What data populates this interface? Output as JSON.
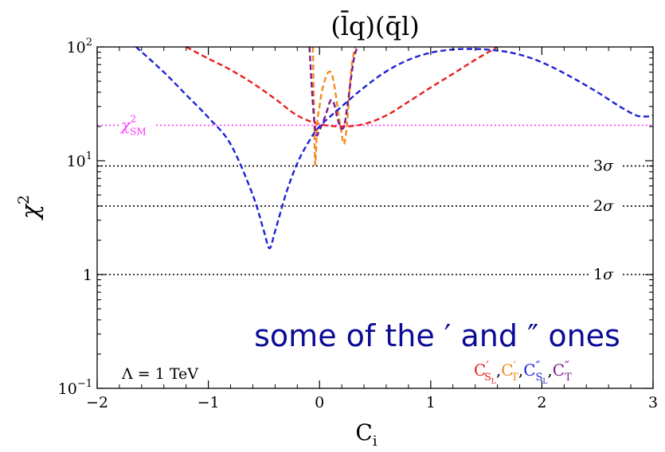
{
  "chart_data": {
    "type": "line",
    "title": "(l̄q)(q̄l)",
    "xlabel": "C",
    "xlabel_sub": "i",
    "ylabel": "χ",
    "ylabel_sup": "2",
    "xlim": [
      -2,
      3
    ],
    "ylim": [
      0.1,
      100
    ],
    "yscale": "log",
    "x_ticks": [
      -2,
      -1,
      0,
      1,
      2,
      3
    ],
    "x_tick_labels": [
      "−2",
      "−1",
      "0",
      "1",
      "2",
      "3"
    ],
    "y_ticks": [
      {
        "value": 100,
        "base": "10",
        "exp": "2"
      },
      {
        "value": 10,
        "base": "10",
        "exp": "1"
      },
      {
        "value": 1,
        "base": "1",
        "exp": ""
      },
      {
        "value": 0.1,
        "base": "10",
        "exp": "−1"
      }
    ],
    "reference_lines": [
      {
        "y": 20.5,
        "color": "#ff33ff",
        "label": "χ",
        "label_sup": "2",
        "label_sub": "SM",
        "label_side": "left"
      },
      {
        "y": 9.0,
        "color": "#000000",
        "label": "3σ",
        "label_side": "right"
      },
      {
        "y": 4.0,
        "color": "#000000",
        "label": "2σ",
        "label_side": "right"
      },
      {
        "y": 1.0,
        "color": "#000000",
        "label": "1σ",
        "label_side": "right"
      }
    ],
    "series": [
      {
        "name": "C′",
        "sub": "S",
        "subsub": "L",
        "color": "#e8201e",
        "x": [
          -1.2,
          -1.0,
          -0.8,
          -0.6,
          -0.4,
          -0.2,
          0.0,
          0.2,
          0.4,
          0.6,
          0.8,
          1.0,
          1.2,
          1.4,
          1.6
        ],
        "y": [
          100,
          79,
          63,
          48,
          35,
          25,
          21,
          20,
          21,
          25,
          33,
          44,
          58,
          77,
          100
        ]
      },
      {
        "name": "C′",
        "sub": "T",
        "subsub": "",
        "color": "#f28a1e",
        "x": [
          -0.06,
          -0.05,
          -0.04,
          -0.03,
          -0.02,
          0.0,
          0.02,
          0.05,
          0.08,
          0.11,
          0.14,
          0.17,
          0.2,
          0.22,
          0.24,
          0.26,
          0.28,
          0.3,
          0.32
        ],
        "y": [
          100,
          30,
          9.5,
          13,
          22,
          30,
          40,
          52,
          60,
          58,
          42,
          26,
          17,
          14,
          18,
          30,
          55,
          80,
          100
        ]
      },
      {
        "name": "C″",
        "sub": "S",
        "subsub": "L",
        "color": "#1e22d6",
        "x": [
          -1.65,
          -1.4,
          -1.2,
          -1.0,
          -0.8,
          -0.6,
          -0.5,
          -0.45,
          -0.4,
          -0.3,
          -0.2,
          -0.1,
          0.0,
          0.2,
          0.4,
          0.6,
          0.8,
          1.0,
          1.2,
          1.35,
          1.5,
          1.7,
          1.9,
          2.1,
          2.3,
          2.5,
          2.7,
          2.85,
          2.95,
          3.0
        ],
        "y": [
          100,
          60,
          38,
          24,
          14,
          5,
          2.4,
          1.7,
          2.4,
          5.2,
          9.5,
          14.5,
          20,
          30,
          44,
          61,
          77,
          89,
          95,
          96,
          95,
          90,
          80,
          66,
          52,
          40,
          30,
          25,
          24.5,
          25
        ]
      },
      {
        "name": "C″",
        "sub": "T",
        "subsub": "",
        "color": "#7a1a8a",
        "x": [
          -0.09,
          -0.07,
          -0.05,
          -0.03,
          -0.01,
          0.01,
          0.04,
          0.07,
          0.1,
          0.13,
          0.16,
          0.19,
          0.22,
          0.25,
          0.28,
          0.31,
          0.34
        ],
        "y": [
          100,
          45,
          24,
          17,
          17.5,
          19.5,
          23,
          28,
          34,
          32,
          24,
          19.5,
          20,
          30,
          50,
          80,
          100
        ]
      }
    ],
    "annotations": {
      "lambda": "Λ = 1 TeV",
      "main_note": "some of the ′ and ″ ones"
    }
  }
}
